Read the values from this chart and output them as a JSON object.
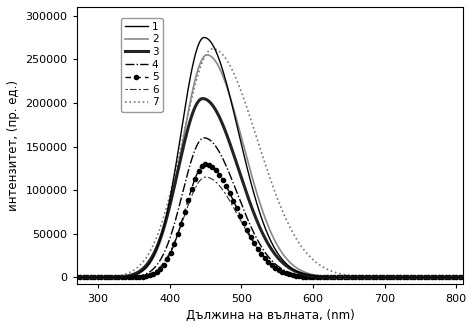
{
  "xlabel": "Дължина на вълната, (nm)",
  "ylabel": "интензитет, (пр. ед.)",
  "xlim": [
    270,
    810
  ],
  "ylim": [
    -8000,
    310000
  ],
  "xticks": [
    300,
    400,
    500,
    600,
    700,
    800
  ],
  "yticks": [
    0,
    50000,
    100000,
    150000,
    200000,
    250000,
    300000
  ],
  "series_labels": [
    "1",
    "2",
    "3",
    "4",
    "5",
    "6",
    "7"
  ],
  "background_color": "#ffffff",
  "series_params": [
    [
      275000,
      448,
      32,
      48
    ],
    [
      255000,
      452,
      34,
      50
    ],
    [
      205000,
      446,
      34,
      50
    ],
    [
      160000,
      448,
      30,
      46
    ],
    [
      130000,
      450,
      28,
      44
    ],
    [
      115000,
      450,
      30,
      46
    ],
    [
      262000,
      460,
      42,
      62
    ]
  ]
}
